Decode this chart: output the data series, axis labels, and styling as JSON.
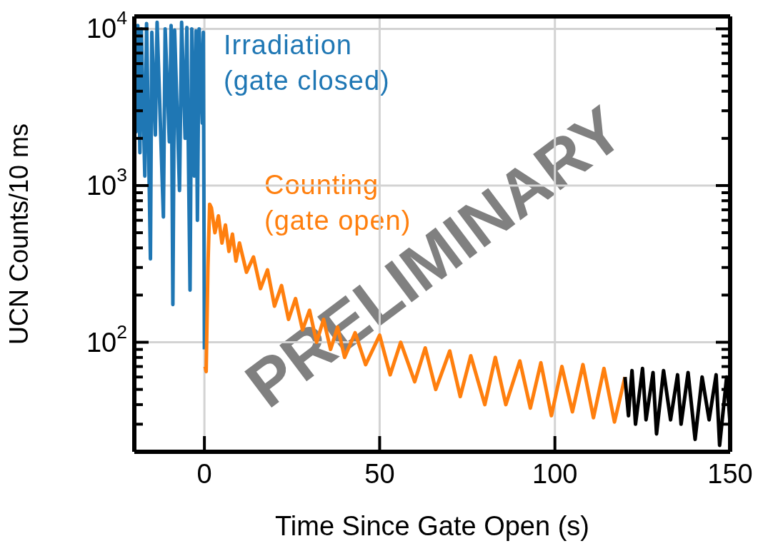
{
  "chart_data": {
    "type": "line",
    "xlabel": "Time Since Gate Open (s)",
    "ylabel": "UCN Counts/10 ms",
    "xlim": [
      -20,
      150
    ],
    "xticks": [
      0,
      50,
      100,
      150
    ],
    "ylim": [
      20,
      12000
    ],
    "yticks": [
      {
        "value": 30,
        "label": null
      },
      {
        "value": 40,
        "label": null
      },
      {
        "value": 50,
        "label": null
      },
      {
        "value": 60,
        "label": null
      },
      {
        "value": 70,
        "label": null
      },
      {
        "value": 80,
        "label": null
      },
      {
        "value": 90,
        "label": null
      },
      {
        "value": 100,
        "label": "10$^{2}$"
      },
      {
        "value": 200,
        "label": null
      },
      {
        "value": 300,
        "label": null
      },
      {
        "value": 400,
        "label": null
      },
      {
        "value": 500,
        "label": null
      },
      {
        "value": 600,
        "label": null
      },
      {
        "value": 700,
        "label": null
      },
      {
        "value": 800,
        "label": null
      },
      {
        "value": 900,
        "label": null
      },
      {
        "value": 1000,
        "label": "10$^{3}$"
      },
      {
        "value": 2000,
        "label": null
      },
      {
        "value": 3000,
        "label": null
      },
      {
        "value": 4000,
        "label": null
      },
      {
        "value": 5000,
        "label": null
      },
      {
        "value": 6000,
        "label": null
      },
      {
        "value": 7000,
        "label": null
      },
      {
        "value": 8000,
        "label": null
      },
      {
        "value": 9000,
        "label": null
      },
      {
        "value": 10000,
        "label": "10$^{4}$"
      }
    ],
    "log": "y",
    "grid": true,
    "line_style": "solid",
    "marker": "none",
    "annotations": [
      "PRELIMINARY"
    ],
    "series": [
      {
        "name": "Irradiation\n(gate closed)",
        "color": "#1f77b4",
        "x": [
          -20,
          -19.5,
          -19,
          -18.4,
          -18,
          -17,
          -16.5,
          -15.4,
          -15,
          -14,
          -13.5,
          -11.7,
          -11.2,
          -10,
          -9.5,
          -9,
          -8.5,
          -7.1,
          -6.5,
          -5.5,
          -5,
          -4.1,
          -3.6,
          -2.9,
          -2.4,
          -2,
          -1.5,
          -0.6,
          -0.3,
          0
        ],
        "values": [
          9800,
          2200,
          10500,
          1620,
          10000,
          1150,
          10800,
          340,
          9500,
          2100,
          11000,
          630,
          10000,
          1900,
          10500,
          174,
          9800,
          930,
          11000,
          2000,
          10200,
          215,
          10000,
          1150,
          9700,
          600,
          10000,
          2500,
          9500,
          90
        ]
      },
      {
        "name": "Counting\n(gate open)",
        "color": "#ff7f0e",
        "x": [
          0.2,
          0.5,
          1,
          1.5,
          2,
          3,
          4,
          5,
          6,
          7,
          8,
          9,
          10,
          12,
          14,
          16,
          18,
          20,
          22,
          24,
          26,
          28,
          30,
          32,
          34,
          36,
          38,
          40,
          43,
          46,
          50,
          53,
          56,
          60,
          63,
          66,
          70,
          73,
          76,
          80,
          83,
          86,
          90,
          93,
          96,
          99,
          102,
          105,
          108,
          111,
          114,
          117,
          120
        ],
        "values": [
          70,
          65,
          300,
          760,
          720,
          500,
          640,
          430,
          560,
          380,
          490,
          330,
          430,
          280,
          350,
          220,
          290,
          170,
          230,
          140,
          190,
          120,
          160,
          100,
          140,
          90,
          125,
          80,
          115,
          72,
          111,
          62,
          100,
          56,
          92,
          50,
          88,
          45,
          82,
          40,
          80,
          40,
          76,
          38,
          74,
          34,
          70,
          36,
          72,
          33,
          68,
          31,
          60
        ]
      },
      {
        "color": "#000000",
        "x": [
          120,
          121,
          122,
          123,
          125,
          126,
          128,
          129,
          131,
          133,
          135,
          136,
          138,
          140,
          142,
          144,
          146,
          147,
          149,
          150
        ],
        "values": [
          60,
          34,
          66,
          30,
          68,
          32,
          64,
          26,
          66,
          32,
          62,
          30,
          64,
          24,
          60,
          32,
          62,
          22,
          60,
          30
        ]
      }
    ]
  }
}
